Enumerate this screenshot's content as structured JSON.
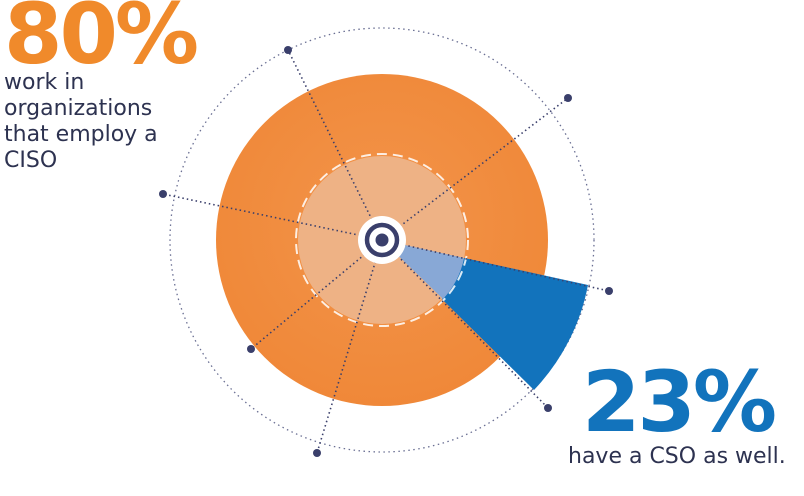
{
  "stats": {
    "primary": {
      "value": "80%",
      "caption": "work in organizations that employ a CISO",
      "color": "#F08A2B"
    },
    "secondary": {
      "value": "23%",
      "caption": "have a CSO as well.",
      "color": "#1273BC"
    }
  },
  "chart_data": {
    "type": "pie",
    "title": "",
    "series": [
      {
        "label": "80%",
        "value": 80,
        "color": "#F08A2B"
      },
      {
        "label": "23%",
        "value": 23,
        "color": "#1273BC"
      }
    ],
    "colors": {
      "outer_orange": "#F08A3C",
      "inner_orange": "#EDB388",
      "blue": "#1273BC",
      "light_blue": "#7FA3D0",
      "navy": "#3A3F6B"
    },
    "center_icon": "target-icon"
  }
}
